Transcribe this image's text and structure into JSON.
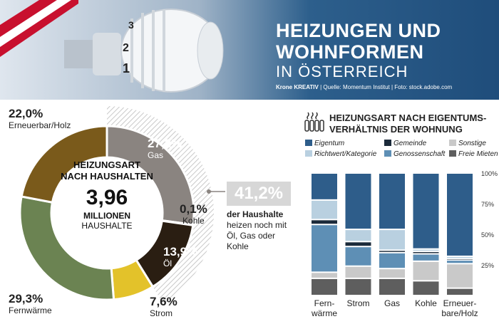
{
  "header": {
    "title_line1": "HEIZUNGEN UND",
    "title_line2": "WOHNFORMEN",
    "title_line3": "IN ÖSTERREICH",
    "credits_brand": "Krone KREATIV",
    "credits_rest": " | Quelle: Momentum Institut | Foto: stock.adobe.com"
  },
  "colors": {
    "flag_red": "#c8102e",
    "gas": "#8a8480",
    "oil": "#2a1e12",
    "electric": "#e3c22a",
    "district": "#6b8352",
    "renewable": "#7a5a1b",
    "coal": "#e8e8e8",
    "eigentum": "#2e5d8a",
    "gemeinde": "#1b2a3a",
    "richtwert": "#b9d0e0",
    "genossenschaft": "#5e8fb5",
    "sonstige": "#c9c9c9",
    "freie": "#5e5e5e"
  },
  "donut": {
    "center_line1": "HEIZUNGSART",
    "center_line2": "NACH HAUSHALTEN",
    "center_value": "3,96",
    "center_unit": "MILLIONEN",
    "center_sub": "HAUSHALTE",
    "highlight_value": "41,2%",
    "highlight_bold": "der Haushalte",
    "highlight_text": "heizen noch mit Öl, Gas oder Kohle"
  },
  "chart_data": [
    {
      "type": "pie",
      "title": "HEIZUNGSART NACH HAUSHALTEN",
      "slices": [
        {
          "label": "Gas",
          "value": 27.2,
          "display": "27,2%",
          "color": "#8a8480"
        },
        {
          "label": "Kohle",
          "value": 0.1,
          "display": "0,1%",
          "color": "#e8e8e8"
        },
        {
          "label": "Öl",
          "value": 13.9,
          "display": "13,9%",
          "color": "#2a1e12"
        },
        {
          "label": "Strom",
          "value": 7.6,
          "display": "7,6%",
          "color": "#e3c22a"
        },
        {
          "label": "Fernwärme",
          "value": 29.3,
          "display": "29,3%",
          "color": "#6b8352"
        },
        {
          "label": "Erneuerbar/Holz",
          "value": 22.0,
          "display": "22,0%",
          "color": "#7a5a1b"
        }
      ]
    },
    {
      "type": "bar",
      "stacked": true,
      "title": "HEIZUNGSART NACH EIGENTUMS- VERHÄLTNIS DER WOHNUNG",
      "title_line1": "HEIZUNGSART NACH EIGENTUMS-",
      "title_line2": "VERHÄLTNIS DER WOHNUNG",
      "categories": [
        [
          "Fern-",
          "wärme"
        ],
        [
          "Strom"
        ],
        [
          "Gas"
        ],
        [
          "Kohle"
        ],
        [
          "Erneuer-",
          "bare/Holz"
        ]
      ],
      "yticks": [
        "100%",
        "75%",
        "50%",
        "25%"
      ],
      "ylim": [
        0,
        100
      ],
      "legend": [
        {
          "name": "Eigentum",
          "color": "#2e5d8a"
        },
        {
          "name": "Gemeinde",
          "color": "#1b2a3a"
        },
        {
          "name": "Sonstige",
          "color": "#c9c9c9"
        },
        {
          "name": "Richtwert/Kategorie",
          "color": "#b9d0e0"
        },
        {
          "name": "Genossenschaft",
          "color": "#5e8fb5"
        },
        {
          "name": "Freie Mieten",
          "color": "#5e5e5e"
        }
      ],
      "series": [
        {
          "name": "Freie Mieten",
          "color": "#5e5e5e",
          "values": [
            14,
            14,
            14,
            12,
            6
          ]
        },
        {
          "name": "Sonstige",
          "color": "#c9c9c9",
          "values": [
            5,
            10,
            8,
            16,
            20
          ]
        },
        {
          "name": "Genossenschaft",
          "color": "#5e8fb5",
          "values": [
            39,
            16,
            13,
            6,
            3
          ]
        },
        {
          "name": "Gemeinde",
          "color": "#1b2a3a",
          "values": [
            4,
            4,
            2,
            2,
            1
          ]
        },
        {
          "name": "Richtwert/Kategorie",
          "color": "#b9d0e0",
          "values": [
            16,
            10,
            17,
            2,
            2
          ]
        },
        {
          "name": "Eigentum",
          "color": "#2e5d8a",
          "values": [
            22,
            46,
            46,
            62,
            68
          ]
        }
      ]
    }
  ]
}
